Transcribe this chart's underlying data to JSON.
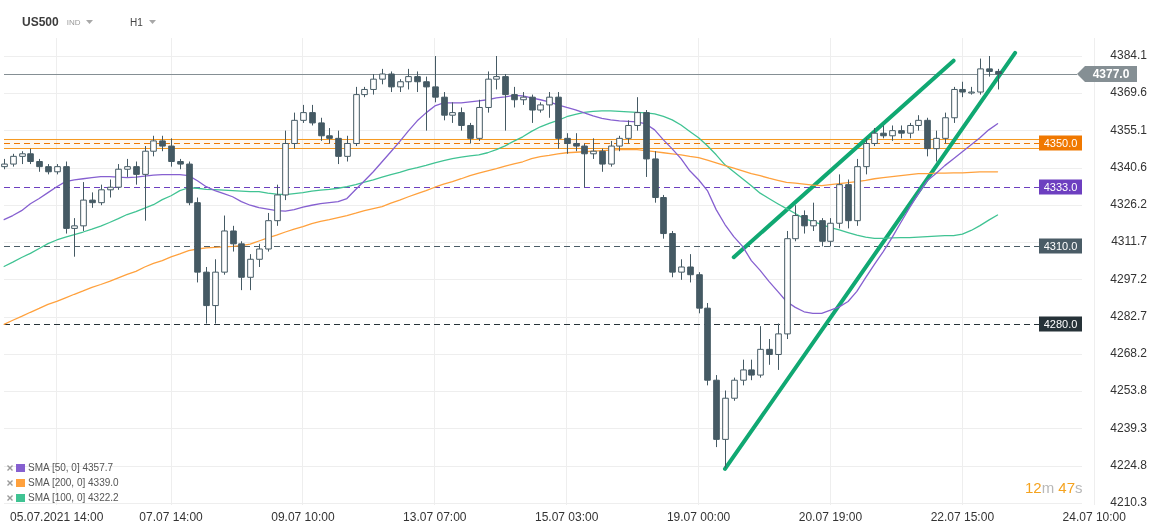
{
  "chart_data": {
    "type": "candlestick",
    "title": "US500",
    "annotations": [
      "IND",
      "H1",
      "12m 47s"
    ],
    "categories": [
      null,
      null,
      null,
      null,
      null,
      null,
      "05.07.2021 14:00",
      null,
      null,
      null,
      null,
      null,
      null,
      null,
      null,
      null,
      null,
      null,
      null,
      "07.07 14:00",
      null,
      null,
      null,
      null,
      null,
      null,
      null,
      null,
      null,
      null,
      null,
      null,
      null,
      null,
      "09.07 10:00",
      null,
      null,
      null,
      null,
      null,
      null,
      null,
      null,
      null,
      null,
      null,
      null,
      null,
      null,
      "13.07 07:00",
      null,
      null,
      null,
      null,
      null,
      null,
      null,
      null,
      null,
      null,
      null,
      null,
      null,
      null,
      "15.07 03:00",
      null,
      null,
      null,
      null,
      null,
      null,
      null,
      null,
      null,
      null,
      null,
      null,
      null,
      null,
      "19.07 00:00",
      null,
      null,
      null,
      null,
      null,
      null,
      null,
      null,
      null,
      null,
      null,
      null,
      null,
      null,
      "20.07 19:00",
      null,
      null,
      null,
      null,
      null,
      null,
      null,
      null,
      null,
      null,
      null,
      null,
      null,
      null,
      "22.07 15:00",
      null,
      null,
      null,
      null,
      null,
      null,
      null,
      null,
      null,
      null,
      null,
      null,
      null,
      null,
      "24.07 10:00",
      null,
      null,
      null,
      null,
      null,
      null
    ],
    "color": "#455a64",
    "ohlc": [
      [
        4341,
        4344,
        4340,
        4342
      ],
      [
        4342,
        4346,
        4341,
        4345
      ],
      [
        4345,
        4347,
        4342,
        4346
      ],
      [
        4346,
        4348,
        4342,
        4343
      ],
      [
        4343,
        4344,
        4339,
        4341
      ],
      [
        4341,
        4342,
        4338,
        4339
      ],
      [
        4339,
        4342,
        4338,
        4341
      ],
      [
        4341,
        4343,
        4315,
        4317
      ],
      [
        4317,
        4321,
        4306,
        4318
      ],
      [
        4318,
        4335,
        4316,
        4328
      ],
      [
        4328,
        4331,
        4325,
        4327
      ],
      [
        4327,
        4334,
        4326,
        4332
      ],
      [
        4332,
        4336,
        4329,
        4333
      ],
      [
        4333,
        4342,
        4332,
        4340
      ],
      [
        4340,
        4344,
        4337,
        4341
      ],
      [
        4341,
        4343,
        4334,
        4338
      ],
      [
        4338,
        4349,
        4320,
        4347
      ],
      [
        4347,
        4353,
        4345,
        4351
      ],
      [
        4351,
        4353,
        4347,
        4349
      ],
      [
        4349,
        4352,
        4341,
        4343
      ],
      [
        4343,
        4344,
        4340,
        4342
      ],
      [
        4342,
        4343,
        4326,
        4327
      ],
      [
        4327,
        4329,
        4296,
        4300
      ],
      [
        4300,
        4302,
        4280,
        4287
      ],
      [
        4287,
        4305,
        4280,
        4300
      ],
      [
        4300,
        4322,
        4299,
        4316
      ],
      [
        4316,
        4318,
        4308,
        4311
      ],
      [
        4311,
        4312,
        4293,
        4298
      ],
      [
        4298,
        4307,
        4293,
        4305
      ],
      [
        4305,
        4311,
        4302,
        4309
      ],
      [
        4309,
        4323,
        4308,
        4320
      ],
      [
        4320,
        4334,
        4318,
        4330
      ],
      [
        4330,
        4355,
        4328,
        4350
      ],
      [
        4350,
        4362,
        4348,
        4359
      ],
      [
        4359,
        4365,
        4358,
        4362
      ],
      [
        4362,
        4365,
        4357,
        4358
      ],
      [
        4358,
        4360,
        4351,
        4353
      ],
      [
        4353,
        4356,
        4350,
        4352
      ],
      [
        4352,
        4355,
        4342,
        4345
      ],
      [
        4345,
        4353,
        4343,
        4350
      ],
      [
        4350,
        4372,
        4349,
        4369
      ],
      [
        4369,
        4372,
        4368,
        4371
      ],
      [
        4371,
        4377,
        4369,
        4375
      ],
      [
        4375,
        4379,
        4373,
        4377
      ],
      [
        4377,
        4378,
        4370,
        4372
      ],
      [
        4372,
        4375,
        4370,
        4374
      ],
      [
        4374,
        4379,
        4371,
        4376
      ],
      [
        4376,
        4378,
        4370,
        4374
      ],
      [
        4374,
        4376,
        4355,
        4372
      ],
      [
        4372,
        4384,
        4366,
        4368
      ],
      [
        4368,
        4370,
        4359,
        4361
      ],
      [
        4361,
        4366,
        4358,
        4362
      ],
      [
        4362,
        4364,
        4355,
        4357
      ],
      [
        4357,
        4358,
        4350,
        4352
      ],
      [
        4352,
        4367,
        4351,
        4364
      ],
      [
        4364,
        4378,
        4362,
        4375
      ],
      [
        4375,
        4384,
        4371,
        4376
      ],
      [
        4376,
        4377,
        4355,
        4369
      ],
      [
        4369,
        4372,
        4364,
        4367
      ],
      [
        4367,
        4370,
        4365,
        4368
      ],
      [
        4368,
        4369,
        4358,
        4363
      ],
      [
        4363,
        4366,
        4362,
        4365
      ],
      [
        4365,
        4370,
        4360,
        4368
      ],
      [
        4368,
        4370,
        4348,
        4352
      ],
      [
        4352,
        4354,
        4346,
        4350
      ],
      [
        4350,
        4354,
        4347,
        4349
      ],
      [
        4349,
        4350,
        4333,
        4346
      ],
      [
        4346,
        4352,
        4344,
        4347
      ],
      [
        4347,
        4348,
        4339,
        4342
      ],
      [
        4342,
        4351,
        4341,
        4349
      ],
      [
        4349,
        4353,
        4347,
        4352
      ],
      [
        4352,
        4359,
        4350,
        4357
      ],
      [
        4357,
        4368,
        4355,
        4362
      ],
      [
        4362,
        4363,
        4337,
        4344
      ],
      [
        4344,
        4347,
        4327,
        4329
      ],
      [
        4329,
        4330,
        4313,
        4315
      ],
      [
        4315,
        4316,
        4298,
        4300
      ],
      [
        4300,
        4305,
        4297,
        4302
      ],
      [
        4302,
        4307,
        4296,
        4299
      ],
      [
        4299,
        4300,
        4284,
        4286
      ],
      [
        4286,
        4288,
        4256,
        4258
      ],
      [
        4258,
        4260,
        4232,
        4235
      ],
      [
        4235,
        4254,
        4224,
        4251
      ],
      [
        4251,
        4259,
        4250,
        4258
      ],
      [
        4258,
        4266,
        4256,
        4262
      ],
      [
        4262,
        4266,
        4258,
        4260
      ],
      [
        4260,
        4279,
        4259,
        4270
      ],
      [
        4270,
        4274,
        4264,
        4268
      ],
      [
        4268,
        4280,
        4262,
        4276
      ],
      [
        4276,
        4316,
        4274,
        4313
      ],
      [
        4313,
        4326,
        4312,
        4322
      ],
      [
        4322,
        4324,
        4315,
        4318
      ],
      [
        4318,
        4327,
        4316,
        4320
      ],
      [
        4320,
        4321,
        4310,
        4312
      ],
      [
        4312,
        4321,
        4310,
        4319
      ],
      [
        4319,
        4338,
        4317,
        4334
      ],
      [
        4334,
        4336,
        4317,
        4320
      ],
      [
        4320,
        4344,
        4318,
        4341
      ],
      [
        4341,
        4352,
        4338,
        4350
      ],
      [
        4350,
        4356,
        4349,
        4354
      ],
      [
        4354,
        4357,
        4352,
        4353
      ],
      [
        4353,
        4357,
        4351,
        4355
      ],
      [
        4355,
        4357,
        4352,
        4354
      ],
      [
        4354,
        4358,
        4352,
        4357
      ],
      [
        4357,
        4361,
        4355,
        4359
      ],
      [
        4359,
        4360,
        4345,
        4348
      ],
      [
        4348,
        4355,
        4343,
        4352
      ],
      [
        4352,
        4362,
        4350,
        4360
      ],
      [
        4360,
        4372,
        4358,
        4371
      ],
      [
        4371,
        4374,
        4368,
        4370
      ],
      [
        4370,
        4372,
        4369,
        4370
      ],
      [
        4370,
        4383,
        4369,
        4379
      ],
      [
        4379,
        4384,
        4376,
        4378
      ],
      [
        4378,
        4379,
        4371,
        4377
      ],
      null,
      null,
      null,
      null,
      null,
      null,
      null,
      null,
      null,
      null,
      null,
      null,
      null,
      null,
      null,
      null,
      null
    ],
    "series": [
      {
        "type": "line",
        "name": "SMA [50, 0] 4357.7",
        "color": "#8660d0",
        "values": [
          4320.4,
          4322.0,
          4323.9,
          4326.6,
          4328.6,
          4330.9,
          4333.2,
          4335.2,
          4335.9,
          4336.3,
          4336.7,
          4337.1,
          4337.1,
          4336.9,
          4336.7,
          4336.9,
          4337.3,
          4337.7,
          4337.9,
          4337.9,
          4337.9,
          4337.5,
          4335.5,
          4333.2,
          4331.7,
          4330.5,
          4329.3,
          4327.4,
          4326.0,
          4325.1,
          4324.5,
          4323.9,
          4323.7,
          4324.3,
          4325.3,
          4326.0,
          4326.6,
          4327.0,
          4327.4,
          4328.6,
          4332.1,
          4335.5,
          4339.0,
          4342.9,
          4346.8,
          4350.7,
          4354.9,
          4358.8,
          4361.9,
          4364.6,
          4365.8,
          4365.8,
          4365.8,
          4366.2,
          4366.6,
          4367.0,
          4367.7,
          4368.1,
          4368.7,
          4368.5,
          4367.7,
          4367.0,
          4366.2,
          4365.0,
          4364.0,
          4363.1,
          4361.9,
          4360.7,
          4359.8,
          4359.2,
          4358.8,
          4358.6,
          4358.4,
          4357.6,
          4355.3,
          4351.4,
          4347.9,
          4344.1,
          4339.4,
          4335.9,
          4331.7,
          4324.3,
          4318.5,
          4313.8,
          4310.0,
          4304.5,
          4300.7,
          4296.4,
          4292.5,
          4288.6,
          4286.3,
          4284.6,
          4284.0,
          4284.0,
          4285.2,
          4286.5,
          4288.6,
          4292.5,
          4297.9,
          4303.0,
          4308.0,
          4313.4,
          4319.3,
          4325.1,
          4330.5,
          4335.5,
          4338.3,
          4341.4,
          4344.1,
          4346.8,
          4349.5,
          4352.2,
          4355.3,
          4357.7,
          null,
          null,
          null,
          null,
          null,
          null,
          null,
          null,
          null,
          null,
          null,
          null,
          null,
          null,
          null,
          null,
          null
        ]
      },
      {
        "type": "line",
        "name": "SMA [200, 0] 4339.0",
        "color": "#ffa13d",
        "values": [
          4279.7,
          4281.3,
          4282.8,
          4284.4,
          4285.9,
          4287.5,
          4288.6,
          4290.0,
          4291.4,
          4292.7,
          4294.1,
          4295.2,
          4296.4,
          4297.8,
          4299.1,
          4300.3,
          4302.0,
          4303.4,
          4304.5,
          4305.9,
          4307.1,
          4308.4,
          4309.0,
          4309.4,
          4309.6,
          4309.8,
          4310.0,
          4310.3,
          4310.9,
          4312.1,
          4313.3,
          4314.4,
          4315.6,
          4316.7,
          4317.7,
          4318.9,
          4319.7,
          4320.4,
          4321.2,
          4322.0,
          4322.9,
          4323.9,
          4324.7,
          4325.5,
          4326.8,
          4328.0,
          4329.3,
          4330.5,
          4331.7,
          4333.0,
          4334.2,
          4335.2,
          4336.3,
          4337.5,
          4338.5,
          4339.4,
          4340.2,
          4341.2,
          4342.1,
          4342.9,
          4344.1,
          4344.9,
          4345.4,
          4346.0,
          4346.4,
          4346.6,
          4346.8,
          4347.0,
          4347.2,
          4347.4,
          4347.6,
          4347.6,
          4347.6,
          4347.2,
          4346.8,
          4346.4,
          4346.0,
          4345.6,
          4345.0,
          4344.5,
          4343.5,
          4342.5,
          4341.4,
          4340.4,
          4339.4,
          4338.3,
          4337.5,
          4336.5,
          4335.7,
          4334.9,
          4334.6,
          4334.2,
          4333.8,
          4333.6,
          4334.0,
          4334.4,
          4334.8,
          4335.2,
          4335.7,
          4336.3,
          4336.7,
          4337.1,
          4337.5,
          4337.9,
          4338.3,
          4338.3,
          4338.5,
          4338.5,
          4338.6,
          4338.6,
          4338.8,
          4339.0,
          4339.0,
          4339.0,
          null,
          null,
          null,
          null,
          null,
          null,
          null,
          null,
          null,
          null,
          null,
          null,
          null,
          null,
          null,
          null,
          null
        ]
      },
      {
        "type": "line",
        "name": "SMA [100, 0] 4322.2",
        "color": "#40c393",
        "values": [
          4302.2,
          4303.9,
          4305.7,
          4307.3,
          4309.2,
          4311.1,
          4312.5,
          4313.6,
          4314.6,
          4315.6,
          4316.7,
          4317.9,
          4319.3,
          4320.8,
          4322.4,
          4323.5,
          4324.9,
          4326.2,
          4328.2,
          4329.7,
          4331.7,
          4332.8,
          4332.6,
          4332.2,
          4332.1,
          4331.9,
          4331.7,
          4331.5,
          4331.3,
          4331.3,
          4330.7,
          4330.3,
          4330.1,
          4330.5,
          4330.9,
          4331.5,
          4331.9,
          4332.2,
          4332.6,
          4333.2,
          4334.0,
          4335.0,
          4335.9,
          4336.9,
          4337.9,
          4338.8,
          4339.8,
          4340.6,
          4341.5,
          4342.5,
          4343.3,
          4344.1,
          4344.7,
          4345.2,
          4345.6,
          4346.4,
          4347.6,
          4349.1,
          4350.9,
          4352.6,
          4354.7,
          4356.5,
          4357.8,
          4359.0,
          4360.4,
          4361.3,
          4362.1,
          4362.5,
          4362.7,
          4362.7,
          4362.5,
          4362.3,
          4362.1,
          4361.9,
          4361.5,
          4360.5,
          4359.2,
          4357.2,
          4354.7,
          4352.2,
          4349.1,
          4345.6,
          4341.7,
          4339.0,
          4336.3,
          4333.6,
          4330.7,
          4328.6,
          4326.6,
          4324.7,
          4322.8,
          4320.8,
          4319.7,
          4318.5,
          4317.3,
          4316.4,
          4315.4,
          4314.4,
          4313.6,
          4313.1,
          4313.1,
          4313.3,
          4313.4,
          4313.4,
          4313.6,
          4313.8,
          4314.0,
          4314.2,
          4314.2,
          4314.8,
          4316.2,
          4318.1,
          4320.2,
          4322.2,
          null,
          null,
          null,
          null,
          null,
          null,
          null,
          null,
          null,
          null,
          null,
          null,
          null,
          null,
          null,
          null,
          null
        ]
      },
      {
        "type": "line",
        "color": "#10a872",
        "values": [
          null,
          null,
          null,
          null,
          null,
          null,
          null,
          null,
          null,
          null,
          null,
          null,
          null,
          null,
          null,
          null,
          null,
          null,
          null,
          null,
          null,
          null,
          null,
          null,
          null,
          null,
          null,
          null,
          null,
          null,
          null,
          null,
          null,
          null,
          null,
          null,
          null,
          null,
          null,
          null,
          null,
          null,
          null,
          null,
          null,
          null,
          null,
          null,
          null,
          null,
          null,
          null,
          null,
          null,
          null,
          null,
          null,
          null,
          null,
          null,
          null,
          null,
          null,
          null,
          null,
          null,
          null,
          null,
          null,
          null,
          null,
          null,
          null,
          null,
          null,
          null,
          null,
          null,
          null,
          null,
          null,
          null,
          4223.5,
          null,
          null,
          null,
          null,
          null,
          null,
          null,
          null,
          null,
          null,
          null,
          null,
          null,
          null,
          null,
          null,
          null,
          null,
          null,
          null,
          null,
          null,
          null,
          null,
          null,
          null,
          null,
          null,
          null,
          null,
          null,
          null,
          4385.2,
          null,
          null,
          null,
          null,
          null,
          null,
          null,
          null,
          null,
          null,
          null,
          null,
          null,
          null,
          null
        ]
      },
      {
        "type": "line",
        "color": "#10a872",
        "values": [
          null,
          null,
          null,
          null,
          null,
          null,
          null,
          null,
          null,
          null,
          null,
          null,
          null,
          null,
          null,
          null,
          null,
          null,
          null,
          null,
          null,
          null,
          null,
          null,
          null,
          null,
          null,
          null,
          null,
          null,
          null,
          null,
          null,
          null,
          null,
          null,
          null,
          null,
          null,
          null,
          null,
          null,
          null,
          null,
          null,
          null,
          null,
          null,
          null,
          null,
          null,
          null,
          null,
          null,
          null,
          null,
          null,
          null,
          null,
          null,
          null,
          null,
          null,
          null,
          null,
          null,
          null,
          null,
          null,
          null,
          null,
          null,
          null,
          null,
          null,
          null,
          null,
          null,
          null,
          null,
          null,
          null,
          null,
          4305.8,
          null,
          null,
          null,
          null,
          null,
          null,
          null,
          null,
          null,
          null,
          null,
          null,
          null,
          null,
          null,
          null,
          null,
          null,
          null,
          null,
          null,
          null,
          null,
          null,
          4382.2,
          null,
          null,
          null,
          null,
          null,
          null,
          null,
          null,
          null,
          null,
          null,
          null,
          null,
          null,
          null,
          null,
          null,
          null,
          null,
          null,
          null,
          null
        ]
      }
    ],
    "ylim": [
      4209.5,
      4391
    ],
    "yticks": [
      4384.1,
      4369.6,
      4355.1,
      4340.6,
      4326.2,
      4311.7,
      4297.2,
      4282.7,
      4268.2,
      4253.8,
      4239.3,
      4224.8,
      4210.3
    ],
    "grid": true,
    "legend": "bottom left",
    "marker": "none",
    "bands": [
      {
        "axis": "y",
        "from": 4348.2,
        "to": 4351.8,
        "color": "#f59a23"
      }
    ],
    "ref_lines": [
      {
        "axis": "y",
        "value": 4377.0,
        "label": "4377.0",
        "color": "#858f94",
        "line_style": "solid"
      },
      {
        "axis": "y",
        "value": 4351.8,
        "color": "#f59a23",
        "line_style": "solid"
      },
      {
        "axis": "y",
        "value": 4348.2,
        "color": "#f59a23",
        "line_style": "solid"
      },
      {
        "axis": "y",
        "value": 4350.0,
        "label": "4350.0",
        "color": "#f07800",
        "line_style": "dashed"
      },
      {
        "axis": "y",
        "value": 4333.0,
        "label": "4333.0",
        "color": "#6d3fc0",
        "line_style": "dashed"
      },
      {
        "axis": "y",
        "value": 4310.0,
        "label": "4310.0",
        "color": "#4a5c66",
        "line_style": "dashed"
      },
      {
        "axis": "y",
        "value": 4280.0,
        "label": "4280.0",
        "color": "#263238",
        "line_style": "dashed"
      }
    ]
  }
}
